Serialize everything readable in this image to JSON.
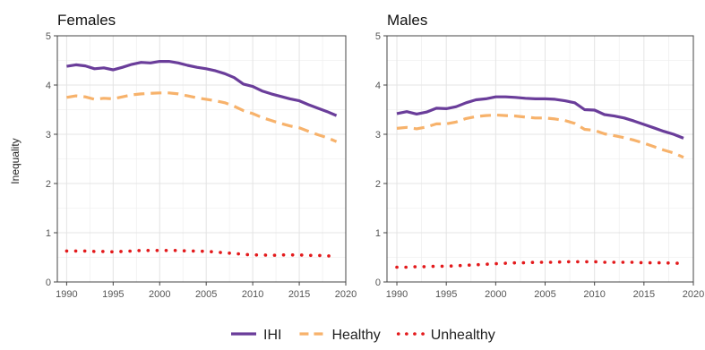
{
  "chart_data": {
    "type": "line",
    "ylabel": "Inequality",
    "ylim": [
      0,
      5
    ],
    "xlim": [
      1989,
      2020
    ],
    "x_ticks": [
      1990,
      1995,
      2000,
      2005,
      2010,
      2015,
      2020
    ],
    "y_ticks": [
      0,
      1,
      2,
      3,
      4,
      5
    ],
    "grid": true,
    "legend_position": "bottom",
    "legend": [
      {
        "name": "IHI",
        "style": "solid",
        "color": "#6a3d9a"
      },
      {
        "name": "Healthy",
        "style": "dashed",
        "color": "#f7b26b"
      },
      {
        "name": "Unhealthy",
        "style": "dotted",
        "color": "#e31a1c"
      }
    ],
    "years": [
      1990,
      1991,
      1992,
      1993,
      1994,
      1995,
      1996,
      1997,
      1998,
      1999,
      2000,
      2001,
      2002,
      2003,
      2004,
      2005,
      2006,
      2007,
      2008,
      2009,
      2010,
      2011,
      2012,
      2013,
      2014,
      2015,
      2016,
      2017,
      2018,
      2019
    ],
    "panels": [
      {
        "title": "Females",
        "series": [
          {
            "name": "IHI",
            "values": [
              4.38,
              4.41,
              4.39,
              4.33,
              4.35,
              4.31,
              4.36,
              4.42,
              4.46,
              4.45,
              4.48,
              4.48,
              4.45,
              4.4,
              4.36,
              4.33,
              4.29,
              4.23,
              4.15,
              4.02,
              3.97,
              3.88,
              3.82,
              3.77,
              3.72,
              3.68,
              3.6,
              3.53,
              3.46,
              3.38
            ]
          },
          {
            "name": "Healthy",
            "values": [
              3.75,
              3.78,
              3.76,
              3.71,
              3.73,
              3.72,
              3.76,
              3.8,
              3.82,
              3.83,
              3.84,
              3.84,
              3.82,
              3.78,
              3.74,
              3.71,
              3.68,
              3.64,
              3.57,
              3.48,
              3.42,
              3.34,
              3.28,
              3.22,
              3.17,
              3.13,
              3.06,
              2.99,
              2.93,
              2.85
            ]
          },
          {
            "name": "Unhealthy",
            "values": [
              0.63,
              0.63,
              0.63,
              0.62,
              0.62,
              0.61,
              0.62,
              0.63,
              0.64,
              0.64,
              0.64,
              0.64,
              0.64,
              0.63,
              0.63,
              0.62,
              0.61,
              0.59,
              0.58,
              0.56,
              0.55,
              0.55,
              0.54,
              0.55,
              0.55,
              0.55,
              0.54,
              0.54,
              0.53,
              0.53
            ]
          }
        ]
      },
      {
        "title": "Males",
        "series": [
          {
            "name": "IHI",
            "values": [
              3.42,
              3.46,
              3.41,
              3.45,
              3.53,
              3.52,
              3.56,
              3.64,
              3.7,
              3.72,
              3.76,
              3.76,
              3.75,
              3.73,
              3.72,
              3.72,
              3.71,
              3.68,
              3.64,
              3.5,
              3.49,
              3.4,
              3.37,
              3.33,
              3.27,
              3.2,
              3.13,
              3.06,
              3.0,
              2.92
            ]
          },
          {
            "name": "Healthy",
            "values": [
              3.12,
              3.14,
              3.11,
              3.15,
              3.21,
              3.21,
              3.25,
              3.32,
              3.36,
              3.38,
              3.39,
              3.38,
              3.37,
              3.35,
              3.33,
              3.33,
              3.31,
              3.28,
              3.22,
              3.1,
              3.08,
              3.01,
              2.97,
              2.93,
              2.88,
              2.82,
              2.75,
              2.68,
              2.62,
              2.53
            ]
          },
          {
            "name": "Unhealthy",
            "values": [
              0.3,
              0.3,
              0.31,
              0.31,
              0.32,
              0.32,
              0.33,
              0.34,
              0.35,
              0.36,
              0.37,
              0.38,
              0.39,
              0.39,
              0.4,
              0.4,
              0.4,
              0.41,
              0.41,
              0.41,
              0.41,
              0.4,
              0.4,
              0.4,
              0.4,
              0.39,
              0.39,
              0.39,
              0.38,
              0.38
            ]
          }
        ]
      }
    ]
  }
}
